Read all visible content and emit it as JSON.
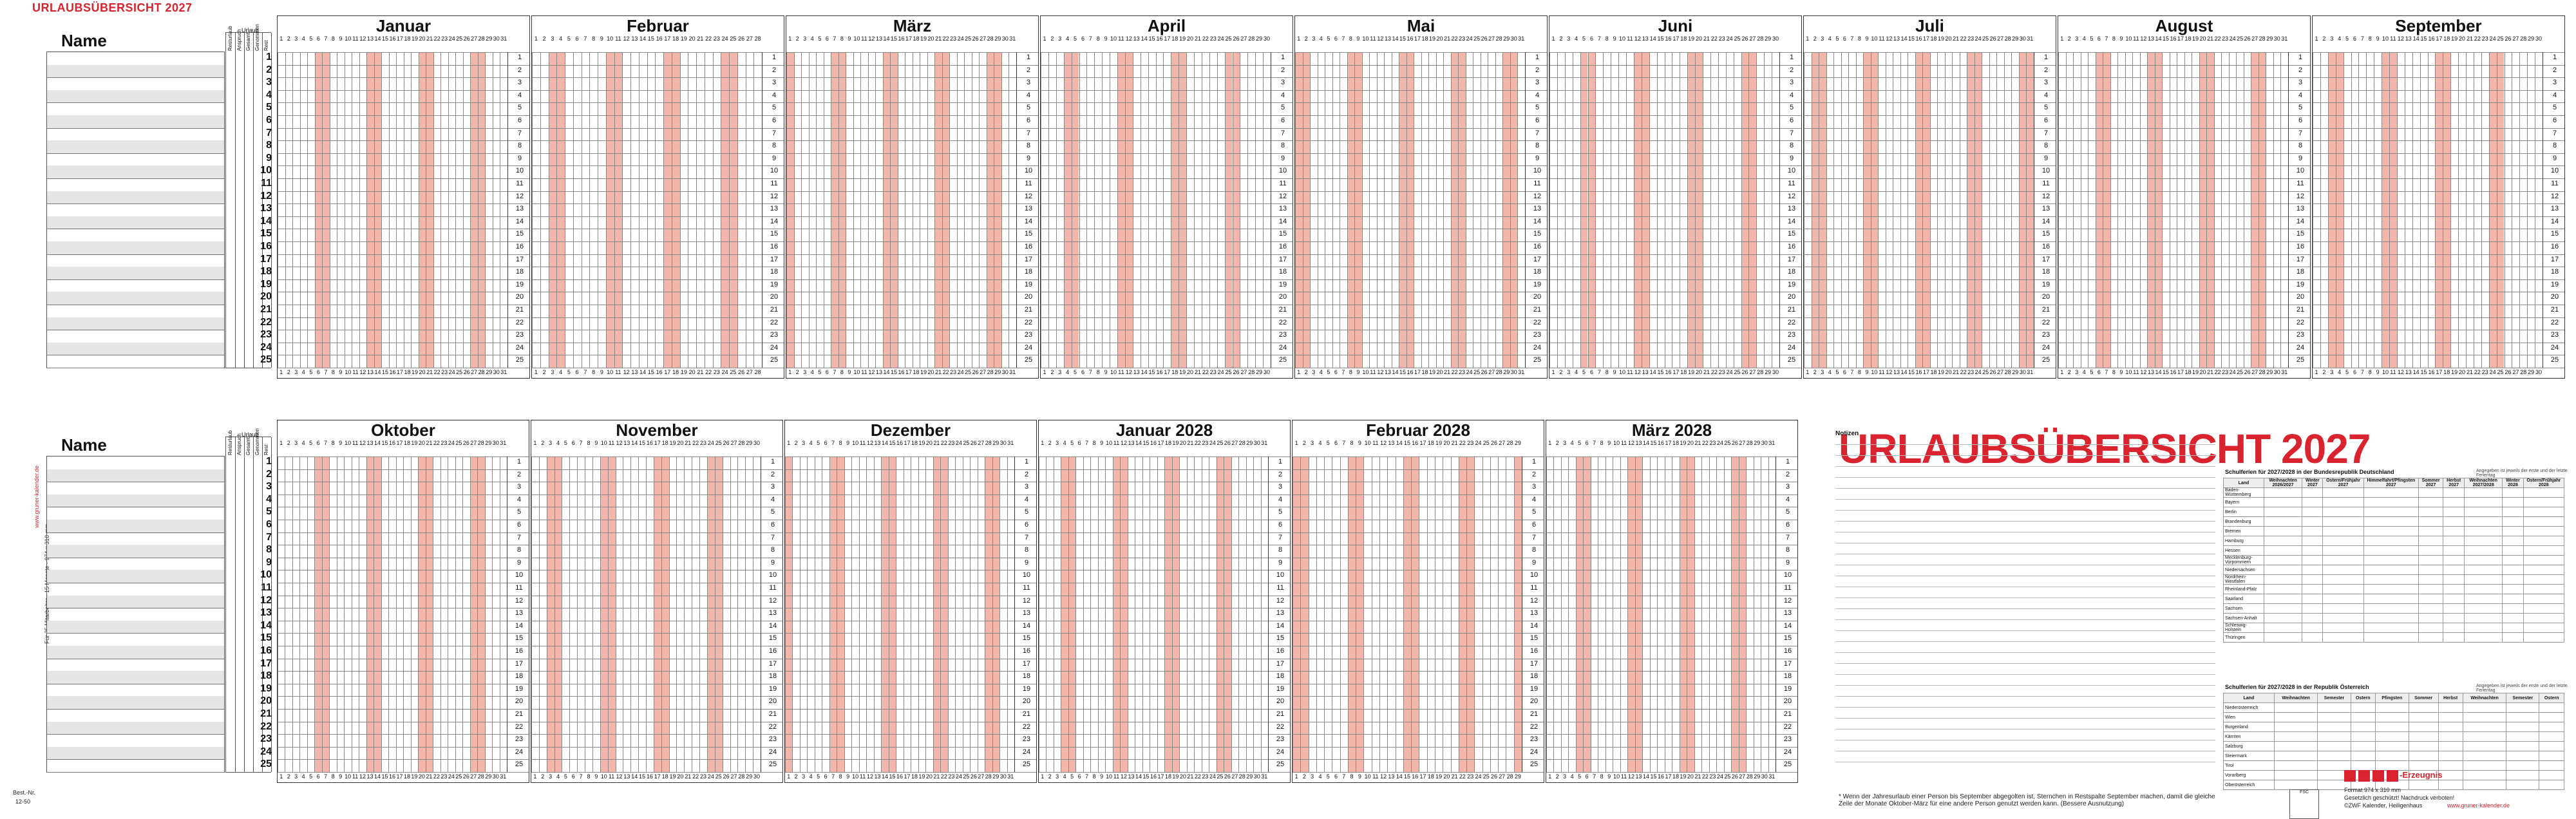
{
  "header": {
    "top_title": "URLAUBSÜBERSICHT 2027",
    "big_title": "URLAUBSÜBERSICHT 2027"
  },
  "side": {
    "url": "www.gruner-kalender.de",
    "desc": "Für 25 Mitarbeiter · 15 Monate · 974 x 310 mm",
    "best": "Best.-Nr.",
    "best_no": "12-50"
  },
  "labels": {
    "name": "Name",
    "urlaub": "Urlaub",
    "feiertage": "Feiertage",
    "notizen": "Notizen"
  },
  "legend_columns": [
    "Resturlaub",
    "Anspruch",
    "Gesamt",
    "Genommen",
    "Rest"
  ],
  "row_numbers": [
    "1",
    "2",
    "3",
    "4",
    "5",
    "6",
    "7",
    "8",
    "9",
    "10",
    "11",
    "12",
    "13",
    "14",
    "15",
    "16",
    "17",
    "18",
    "19",
    "20",
    "21",
    "22",
    "23",
    "24",
    "25"
  ],
  "months_row1": [
    {
      "name": "Januar",
      "days": 31
    },
    {
      "name": "Februar",
      "days": 28
    },
    {
      "name": "März",
      "days": 31
    },
    {
      "name": "April",
      "days": 30
    },
    {
      "name": "Mai",
      "days": 31
    },
    {
      "name": "Juni",
      "days": 30
    },
    {
      "name": "Juli",
      "days": 31
    },
    {
      "name": "August",
      "days": 31
    },
    {
      "name": "September",
      "days": 30
    }
  ],
  "months_row2": [
    {
      "name": "Oktober",
      "days": 31
    },
    {
      "name": "November",
      "days": 30
    },
    {
      "name": "Dezember",
      "days": 31
    },
    {
      "name": "Januar 2028",
      "days": 31
    },
    {
      "name": "Februar 2028",
      "days": 29
    },
    {
      "name": "März 2028",
      "days": 31
    }
  ],
  "school_holidays": {
    "title_de": "Schulferien für 2027/2028 in der Bundesrepublik Deutschland",
    "title_at": "Schulferien für 2027/2028 in der Republik Österreich",
    "note": "Angegeben ist jeweils der erste und der letzte Ferientag",
    "headers_de": [
      "Land",
      "Weihnachten 2026/2027",
      "Winter 2027",
      "Ostern/Frühjahr 2027",
      "Himmelfahrt/Pfingsten 2027",
      "Sommer 2027",
      "Herbst 2027",
      "Weihnachten 2027/2028",
      "Winter 2028",
      "Ostern/Frühjahr 2028"
    ],
    "rows_de": [
      "Baden-Württemberg",
      "Bayern",
      "Berlin",
      "Brandenburg",
      "Bremen",
      "Hamburg",
      "Hessen",
      "Mecklenburg-Vorpommern",
      "Niedersachsen",
      "Nordrhein-Westfalen",
      "Rheinland-Pfalz",
      "Saarland",
      "Sachsen",
      "Sachsen-Anhalt",
      "Schleswig-Holstein",
      "Thüringen"
    ],
    "headers_at": [
      "Land",
      "Weihnachten",
      "Semester",
      "Ostern",
      "Pfingsten",
      "Sommer",
      "Herbst",
      "Weihnachten",
      "Semester",
      "Ostern"
    ],
    "rows_at": [
      "Niederösterreich",
      "Wien",
      "Burgenland",
      "Kärnten",
      "Salzburg",
      "Steiermark",
      "Tirol",
      "Vorarlberg",
      "Oberösterreich"
    ]
  },
  "footer": {
    "note": "* Wenn der Jahresurlaub einer Person bis September abgegolten ist, Sternchen in Restspalte September machen, damit die gleiche Zeile der Monate Oktober-März für eine andere Person genutzt werden kann. (Bessere Ausnutzung)",
    "erzeugnis": "-Erzeugnis",
    "format": "Format 974 x 310 mm",
    "protect": "Gesetzlich geschützt! Nachdruck verboten!",
    "publisher": "©ZWF Kalender, Heiligenhaus",
    "url": "www.gruner-kalender.de"
  },
  "colors": {
    "accent": "#d9232e",
    "weekend": "#f3b6aa"
  }
}
